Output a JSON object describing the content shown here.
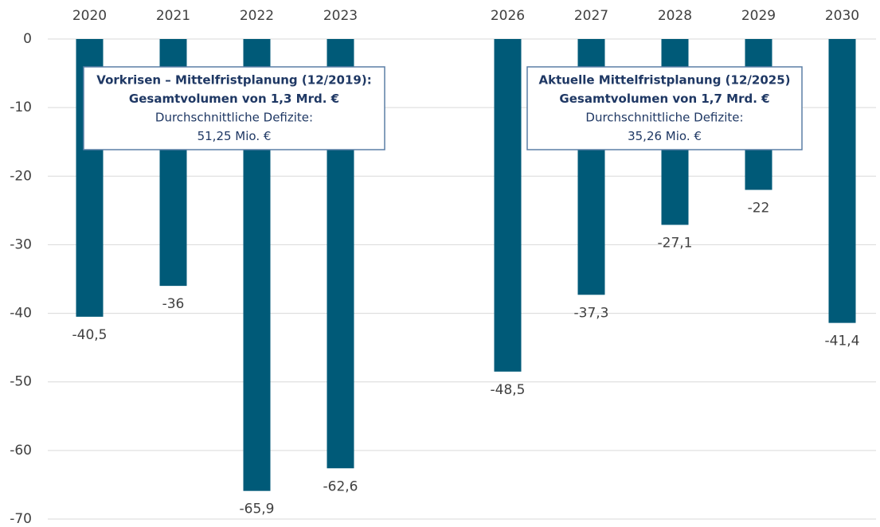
{
  "chart_data": {
    "type": "bar",
    "categories": [
      "2020",
      "2021",
      "2022",
      "2023",
      null,
      "2026",
      "2027",
      "2028",
      "2029",
      "2030"
    ],
    "values": [
      -40.5,
      -36,
      -65.9,
      -62.6,
      null,
      -48.5,
      -37.3,
      -27.1,
      -22,
      -41.4
    ],
    "value_labels": [
      "-40,5",
      "-36",
      "-65,9",
      "-62,6",
      null,
      "-48,5",
      "-37,3",
      "-27,1",
      "-22",
      "-41,4"
    ],
    "color": "#005a78",
    "ylim": [
      -70,
      0
    ],
    "yticks": [
      0,
      -10,
      -20,
      -30,
      -40,
      -50,
      -60,
      -70
    ],
    "grid": true,
    "annotations": [
      [
        "Vorkrisen – Mittelfristplanung (12/2019):",
        "Gesamtvolumen von 1,3 Mrd. €",
        "Durchschnittliche Defizite:",
        "51,25 Mio. €"
      ],
      [
        "Aktuelle Mittelfristplanung (12/2025)",
        "Gesamtvolumen von 1,7 Mrd. €",
        "Durchschnittliche Defizite:",
        "35,26 Mio. €"
      ]
    ]
  }
}
